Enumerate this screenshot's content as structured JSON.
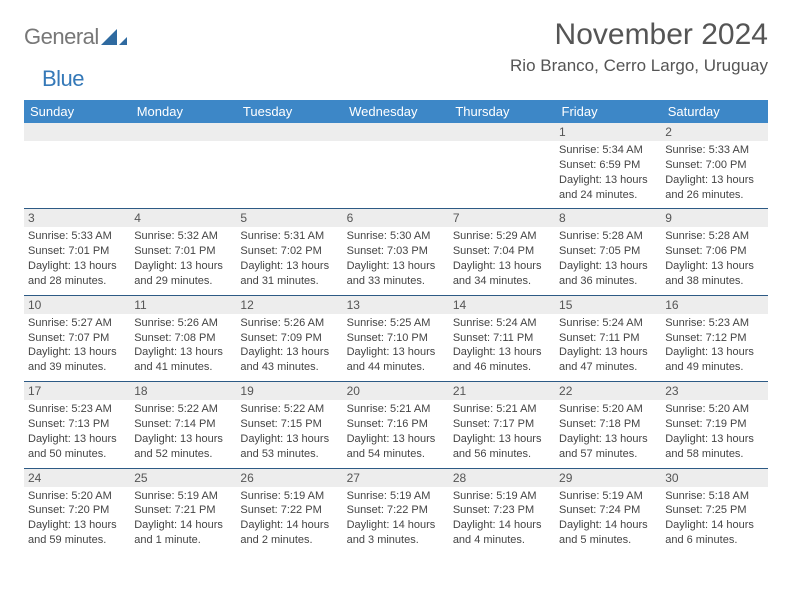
{
  "brand": {
    "general": "General",
    "blue": "Blue"
  },
  "title": {
    "month": "November 2024",
    "location": "Rio Branco, Cerro Largo, Uruguay"
  },
  "colors": {
    "header_bg": "#3d87c7",
    "header_fg": "#ffffff",
    "daynum_bg": "#ededed",
    "rule": "#2d5a85",
    "brand_blue": "#3579b8",
    "brand_gray": "#777777",
    "text": "#444444"
  },
  "dow": [
    "Sunday",
    "Monday",
    "Tuesday",
    "Wednesday",
    "Thursday",
    "Friday",
    "Saturday"
  ],
  "weeks": [
    [
      {
        "n": "",
        "sr": "",
        "ss": "",
        "dl": ""
      },
      {
        "n": "",
        "sr": "",
        "ss": "",
        "dl": ""
      },
      {
        "n": "",
        "sr": "",
        "ss": "",
        "dl": ""
      },
      {
        "n": "",
        "sr": "",
        "ss": "",
        "dl": ""
      },
      {
        "n": "",
        "sr": "",
        "ss": "",
        "dl": ""
      },
      {
        "n": "1",
        "sr": "Sunrise: 5:34 AM",
        "ss": "Sunset: 6:59 PM",
        "dl": "Daylight: 13 hours and 24 minutes."
      },
      {
        "n": "2",
        "sr": "Sunrise: 5:33 AM",
        "ss": "Sunset: 7:00 PM",
        "dl": "Daylight: 13 hours and 26 minutes."
      }
    ],
    [
      {
        "n": "3",
        "sr": "Sunrise: 5:33 AM",
        "ss": "Sunset: 7:01 PM",
        "dl": "Daylight: 13 hours and 28 minutes."
      },
      {
        "n": "4",
        "sr": "Sunrise: 5:32 AM",
        "ss": "Sunset: 7:01 PM",
        "dl": "Daylight: 13 hours and 29 minutes."
      },
      {
        "n": "5",
        "sr": "Sunrise: 5:31 AM",
        "ss": "Sunset: 7:02 PM",
        "dl": "Daylight: 13 hours and 31 minutes."
      },
      {
        "n": "6",
        "sr": "Sunrise: 5:30 AM",
        "ss": "Sunset: 7:03 PM",
        "dl": "Daylight: 13 hours and 33 minutes."
      },
      {
        "n": "7",
        "sr": "Sunrise: 5:29 AM",
        "ss": "Sunset: 7:04 PM",
        "dl": "Daylight: 13 hours and 34 minutes."
      },
      {
        "n": "8",
        "sr": "Sunrise: 5:28 AM",
        "ss": "Sunset: 7:05 PM",
        "dl": "Daylight: 13 hours and 36 minutes."
      },
      {
        "n": "9",
        "sr": "Sunrise: 5:28 AM",
        "ss": "Sunset: 7:06 PM",
        "dl": "Daylight: 13 hours and 38 minutes."
      }
    ],
    [
      {
        "n": "10",
        "sr": "Sunrise: 5:27 AM",
        "ss": "Sunset: 7:07 PM",
        "dl": "Daylight: 13 hours and 39 minutes."
      },
      {
        "n": "11",
        "sr": "Sunrise: 5:26 AM",
        "ss": "Sunset: 7:08 PM",
        "dl": "Daylight: 13 hours and 41 minutes."
      },
      {
        "n": "12",
        "sr": "Sunrise: 5:26 AM",
        "ss": "Sunset: 7:09 PM",
        "dl": "Daylight: 13 hours and 43 minutes."
      },
      {
        "n": "13",
        "sr": "Sunrise: 5:25 AM",
        "ss": "Sunset: 7:10 PM",
        "dl": "Daylight: 13 hours and 44 minutes."
      },
      {
        "n": "14",
        "sr": "Sunrise: 5:24 AM",
        "ss": "Sunset: 7:11 PM",
        "dl": "Daylight: 13 hours and 46 minutes."
      },
      {
        "n": "15",
        "sr": "Sunrise: 5:24 AM",
        "ss": "Sunset: 7:11 PM",
        "dl": "Daylight: 13 hours and 47 minutes."
      },
      {
        "n": "16",
        "sr": "Sunrise: 5:23 AM",
        "ss": "Sunset: 7:12 PM",
        "dl": "Daylight: 13 hours and 49 minutes."
      }
    ],
    [
      {
        "n": "17",
        "sr": "Sunrise: 5:23 AM",
        "ss": "Sunset: 7:13 PM",
        "dl": "Daylight: 13 hours and 50 minutes."
      },
      {
        "n": "18",
        "sr": "Sunrise: 5:22 AM",
        "ss": "Sunset: 7:14 PM",
        "dl": "Daylight: 13 hours and 52 minutes."
      },
      {
        "n": "19",
        "sr": "Sunrise: 5:22 AM",
        "ss": "Sunset: 7:15 PM",
        "dl": "Daylight: 13 hours and 53 minutes."
      },
      {
        "n": "20",
        "sr": "Sunrise: 5:21 AM",
        "ss": "Sunset: 7:16 PM",
        "dl": "Daylight: 13 hours and 54 minutes."
      },
      {
        "n": "21",
        "sr": "Sunrise: 5:21 AM",
        "ss": "Sunset: 7:17 PM",
        "dl": "Daylight: 13 hours and 56 minutes."
      },
      {
        "n": "22",
        "sr": "Sunrise: 5:20 AM",
        "ss": "Sunset: 7:18 PM",
        "dl": "Daylight: 13 hours and 57 minutes."
      },
      {
        "n": "23",
        "sr": "Sunrise: 5:20 AM",
        "ss": "Sunset: 7:19 PM",
        "dl": "Daylight: 13 hours and 58 minutes."
      }
    ],
    [
      {
        "n": "24",
        "sr": "Sunrise: 5:20 AM",
        "ss": "Sunset: 7:20 PM",
        "dl": "Daylight: 13 hours and 59 minutes."
      },
      {
        "n": "25",
        "sr": "Sunrise: 5:19 AM",
        "ss": "Sunset: 7:21 PM",
        "dl": "Daylight: 14 hours and 1 minute."
      },
      {
        "n": "26",
        "sr": "Sunrise: 5:19 AM",
        "ss": "Sunset: 7:22 PM",
        "dl": "Daylight: 14 hours and 2 minutes."
      },
      {
        "n": "27",
        "sr": "Sunrise: 5:19 AM",
        "ss": "Sunset: 7:22 PM",
        "dl": "Daylight: 14 hours and 3 minutes."
      },
      {
        "n": "28",
        "sr": "Sunrise: 5:19 AM",
        "ss": "Sunset: 7:23 PM",
        "dl": "Daylight: 14 hours and 4 minutes."
      },
      {
        "n": "29",
        "sr": "Sunrise: 5:19 AM",
        "ss": "Sunset: 7:24 PM",
        "dl": "Daylight: 14 hours and 5 minutes."
      },
      {
        "n": "30",
        "sr": "Sunrise: 5:18 AM",
        "ss": "Sunset: 7:25 PM",
        "dl": "Daylight: 14 hours and 6 minutes."
      }
    ]
  ]
}
